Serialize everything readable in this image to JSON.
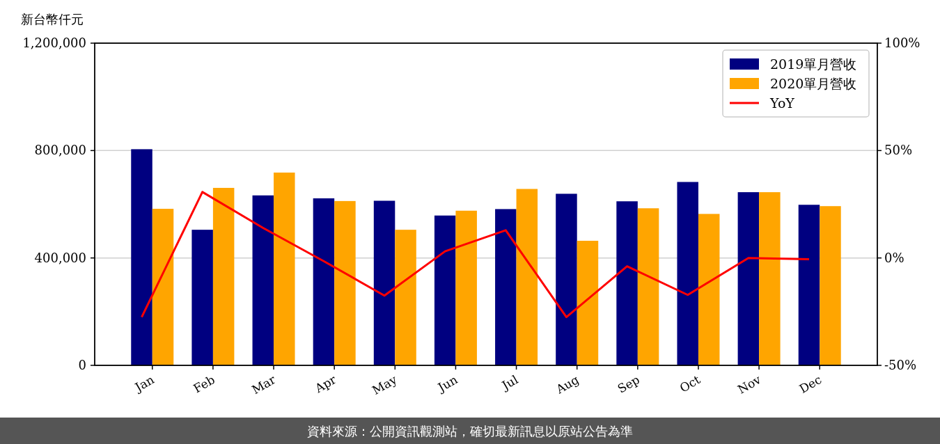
{
  "chart_data": {
    "type": "bar",
    "ylabel": "新台幣仟元",
    "categories": [
      "Jan",
      "Feb",
      "Mar",
      "Apr",
      "May",
      "Jun",
      "Jul",
      "Aug",
      "Sep",
      "Oct",
      "Nov",
      "Dec"
    ],
    "series": [
      {
        "name": "2019單月營收",
        "color": "#000080",
        "values": [
          805000,
          505000,
          633000,
          622000,
          613000,
          558000,
          582000,
          639000,
          611000,
          683000,
          645000,
          598000
        ]
      },
      {
        "name": "2020單月營收",
        "color": "#ffa500",
        "values": [
          583000,
          661000,
          718000,
          612000,
          505000,
          576000,
          657000,
          464000,
          585000,
          564000,
          645000,
          593000
        ]
      },
      {
        "name": "YoY",
        "type": "line",
        "axis": "y2",
        "color": "#ff0000",
        "values": [
          -27.5,
          30.7,
          14,
          -1.5,
          -17.5,
          3.1,
          12.9,
          -27.5,
          -3.9,
          -17.2,
          0,
          -0.6
        ]
      }
    ],
    "ylim": [
      0,
      1200000
    ],
    "yticks": [
      {
        "value": 0,
        "label": "0"
      },
      {
        "value": 400000,
        "label": "400,000"
      },
      {
        "value": 800000,
        "label": "800,000"
      },
      {
        "value": 1200000,
        "label": "1,200,000"
      }
    ],
    "y2lim": [
      -50,
      100
    ],
    "y2ticks": [
      {
        "value": -50,
        "label": "-50%"
      },
      {
        "value": 0,
        "label": "0%"
      },
      {
        "value": 50,
        "label": "50%"
      },
      {
        "value": 100,
        "label": "100%"
      }
    ],
    "grid": "y",
    "legend": "top right",
    "annotations": [
      "資料來源：公開資訊觀測站，確切最新訊息以原站公告為準"
    ]
  }
}
